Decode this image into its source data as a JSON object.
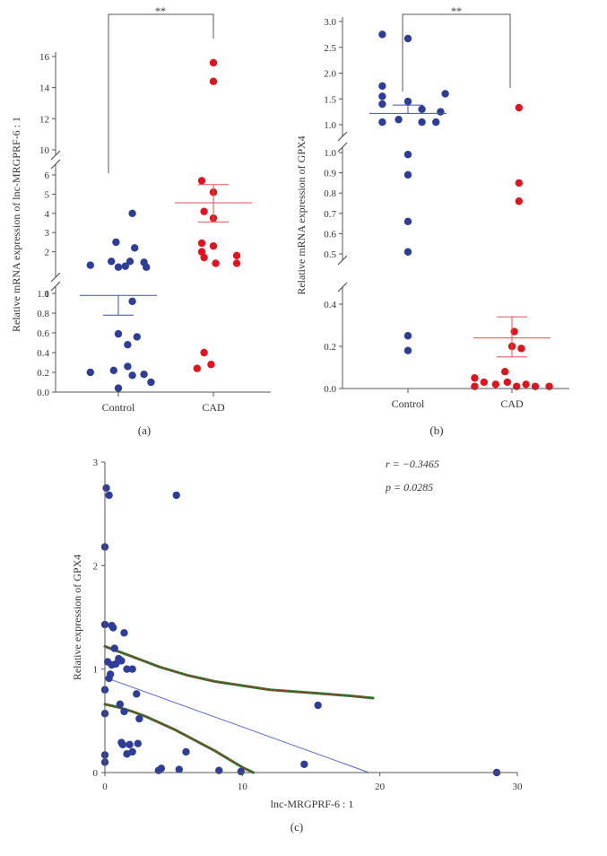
{
  "colors": {
    "control": "#2e3d97",
    "cad": "#e0141e",
    "mean_control": "#3c4fa8",
    "mean_cad": "#e25050",
    "confidence": "#2e7d32",
    "confidence_dots": "#b22222",
    "regression": "#5566cc",
    "axis": "#555555"
  },
  "chart_data": [
    {
      "id": "a",
      "type": "scatter",
      "caption": "(a)",
      "ylabel": "Relative mRNA expression of lnc-MRGPRF-6 : 1",
      "categories": [
        "Control",
        "CAD"
      ],
      "significance": "**",
      "y_ticks_lower": [
        "0.0",
        "0.2",
        "0.4",
        "0.6",
        "0.8",
        "1.0"
      ],
      "y_ticks_middle": [
        "1",
        "2",
        "3",
        "4",
        "5",
        "6"
      ],
      "y_ticks_upper": [
        "10",
        "12",
        "14",
        "16"
      ],
      "series": [
        {
          "name": "Control",
          "points": [
            {
              "dx": -0.12,
              "y": 0.2
            },
            {
              "dx": -0.02,
              "y": 0.22
            },
            {
              "dx": 0.04,
              "y": 0.26
            },
            {
              "dx": 0.06,
              "y": 0.17
            },
            {
              "dx": 0.11,
              "y": 0.18
            },
            {
              "dx": 0.14,
              "y": 0.1
            },
            {
              "dx": 0.0,
              "y": 0.04
            },
            {
              "dx": 0.04,
              "y": 0.48
            },
            {
              "dx": 0.08,
              "y": 0.56
            },
            {
              "dx": 0.0,
              "y": 0.59
            },
            {
              "dx": 0.06,
              "y": 0.92
            },
            {
              "dx": -0.12,
              "y": 1.3
            },
            {
              "dx": -0.03,
              "y": 1.5
            },
            {
              "dx": 0.0,
              "y": 1.2
            },
            {
              "dx": 0.05,
              "y": 1.5
            },
            {
              "dx": 0.12,
              "y": 1.2
            },
            {
              "dx": 0.11,
              "y": 1.45
            },
            {
              "dx": 0.03,
              "y": 1.25
            },
            {
              "dx": -0.01,
              "y": 2.5
            },
            {
              "dx": 0.07,
              "y": 2.2
            },
            {
              "dx": 0.06,
              "y": 4.0
            }
          ],
          "mean": 0.98,
          "error": 0.78
        },
        {
          "name": "CAD",
          "points": [
            {
              "dx": -0.07,
              "y": 0.24
            },
            {
              "dx": -0.01,
              "y": 0.28
            },
            {
              "dx": -0.04,
              "y": 0.4
            },
            {
              "dx": -0.04,
              "y": 1.7
            },
            {
              "dx": -0.05,
              "y": 2.0
            },
            {
              "dx": -0.05,
              "y": 2.45
            },
            {
              "dx": 0.0,
              "y": 2.3
            },
            {
              "dx": 0.01,
              "y": 1.4
            },
            {
              "dx": 0.1,
              "y": 1.4
            },
            {
              "dx": 0.1,
              "y": 1.8
            },
            {
              "dx": -0.04,
              "y": 4.1
            },
            {
              "dx": -0.05,
              "y": 5.7
            },
            {
              "dx": 0.0,
              "y": 5.1
            },
            {
              "dx": 0.0,
              "y": 3.75
            },
            {
              "dx": 0.0,
              "y": 14.4
            },
            {
              "dx": 0.0,
              "y": 15.6
            }
          ],
          "mean": 4.55,
          "error": 3.55,
          "error_upper": 5.5
        }
      ]
    },
    {
      "id": "b",
      "type": "scatter",
      "caption": "(b)",
      "ylabel": "Relative mRNA expression of GPX4",
      "categories": [
        "Control",
        "CAD"
      ],
      "significance": "**",
      "y_ticks_lower": [
        "0.0",
        "0.2",
        "0.4"
      ],
      "y_ticks_middle": [
        "0.5",
        "0.6",
        "0.7",
        "0.8",
        "0.9",
        "1.0"
      ],
      "y_ticks_upper": [
        "1.0",
        "1.5",
        "2.0",
        "2.5",
        "3.0"
      ],
      "series": [
        {
          "name": "Control",
          "points": [
            {
              "dx": 0.0,
              "y": 0.18
            },
            {
              "dx": 0.0,
              "y": 0.25
            },
            {
              "dx": 0.0,
              "y": 0.51
            },
            {
              "dx": 0.0,
              "y": 0.66
            },
            {
              "dx": 0.0,
              "y": 0.89
            },
            {
              "dx": 0.0,
              "y": 0.99
            },
            {
              "dx": -0.11,
              "y": 1.05
            },
            {
              "dx": -0.04,
              "y": 1.1
            },
            {
              "dx": 0.06,
              "y": 1.05
            },
            {
              "dx": 0.12,
              "y": 1.05
            },
            {
              "dx": -0.11,
              "y": 1.4
            },
            {
              "dx": 0.0,
              "y": 1.45
            },
            {
              "dx": 0.06,
              "y": 1.3
            },
            {
              "dx": 0.14,
              "y": 1.25
            },
            {
              "dx": 0.16,
              "y": 1.6
            },
            {
              "dx": -0.11,
              "y": 1.55
            },
            {
              "dx": -0.11,
              "y": 1.75
            },
            {
              "dx": -0.11,
              "y": 2.75
            },
            {
              "dx": 0.0,
              "y": 2.67
            }
          ],
          "mean": 1.22,
          "error": 1.38
        },
        {
          "name": "CAD",
          "points": [
            {
              "dx": -0.16,
              "y": 0.05
            },
            {
              "dx": -0.12,
              "y": 0.03
            },
            {
              "dx": -0.07,
              "y": 0.02
            },
            {
              "dx": -0.03,
              "y": 0.08
            },
            {
              "dx": -0.02,
              "y": 0.03
            },
            {
              "dx": 0.02,
              "y": 0.01
            },
            {
              "dx": 0.06,
              "y": 0.02
            },
            {
              "dx": 0.1,
              "y": 0.01
            },
            {
              "dx": 0.16,
              "y": 0.01
            },
            {
              "dx": -0.16,
              "y": 0.01
            },
            {
              "dx": 0.0,
              "y": 0.2
            },
            {
              "dx": 0.04,
              "y": 0.19
            },
            {
              "dx": 0.01,
              "y": 0.27
            },
            {
              "dx": 0.03,
              "y": 0.76
            },
            {
              "dx": 0.03,
              "y": 0.85
            },
            {
              "dx": 0.03,
              "y": 1.33
            }
          ],
          "mean": 0.24,
          "error": 0.15,
          "error_upper": 0.34
        }
      ]
    },
    {
      "id": "c",
      "type": "scatter",
      "caption": "(c)",
      "xlabel": "lnc-MRGPRF-6 : 1",
      "ylabel": "Relative expression of GPX4",
      "xlim": [
        0,
        30
      ],
      "ylim": [
        0,
        3
      ],
      "x_ticks": [
        "0",
        "10",
        "20",
        "30"
      ],
      "y_ticks": [
        "0",
        "1",
        "2",
        "3"
      ],
      "stat_r": "r = −0.3465",
      "stat_p": "p = 0.0285",
      "points": [
        [
          0.0,
          2.18
        ],
        [
          0.1,
          2.75
        ],
        [
          0.3,
          2.68
        ],
        [
          0.0,
          1.43
        ],
        [
          0.5,
          1.42
        ],
        [
          0.6,
          1.4
        ],
        [
          1.4,
          1.35
        ],
        [
          0.7,
          1.2
        ],
        [
          1.0,
          1.1
        ],
        [
          0.8,
          1.05
        ],
        [
          0.2,
          1.07
        ],
        [
          0.5,
          1.04
        ],
        [
          1.2,
          1.08
        ],
        [
          1.6,
          1.0
        ],
        [
          2.0,
          1.0
        ],
        [
          0.3,
          0.91
        ],
        [
          0.4,
          0.95
        ],
        [
          0.0,
          0.8
        ],
        [
          2.3,
          0.76
        ],
        [
          0.0,
          0.57
        ],
        [
          1.1,
          0.66
        ],
        [
          1.4,
          0.59
        ],
        [
          2.5,
          0.52
        ],
        [
          0.0,
          0.17
        ],
        [
          0.0,
          0.1
        ],
        [
          1.3,
          0.27
        ],
        [
          1.2,
          0.29
        ],
        [
          1.8,
          0.27
        ],
        [
          2.4,
          0.28
        ],
        [
          1.6,
          0.18
        ],
        [
          2.0,
          0.2
        ],
        [
          3.9,
          0.02
        ],
        [
          4.1,
          0.04
        ],
        [
          5.4,
          0.03
        ],
        [
          5.9,
          0.2
        ],
        [
          8.3,
          0.02
        ],
        [
          9.9,
          0.01
        ],
        [
          5.2,
          2.68
        ],
        [
          14.5,
          0.08
        ],
        [
          15.5,
          0.65
        ],
        [
          28.5,
          0.0
        ]
      ],
      "regression": [
        [
          0.0,
          0.92
        ],
        [
          19.2,
          0.0
        ]
      ],
      "confidence_upper": [
        [
          0,
          1.22
        ],
        [
          1,
          1.17
        ],
        [
          2,
          1.12
        ],
        [
          3,
          1.07
        ],
        [
          4,
          1.02
        ],
        [
          5,
          0.98
        ],
        [
          6,
          0.94
        ],
        [
          7,
          0.91
        ],
        [
          8,
          0.88
        ],
        [
          10,
          0.84
        ],
        [
          12,
          0.8
        ],
        [
          14,
          0.78
        ],
        [
          16,
          0.76
        ],
        [
          18,
          0.74
        ],
        [
          19.5,
          0.72
        ]
      ],
      "confidence_lower": [
        [
          0,
          0.66
        ],
        [
          1,
          0.63
        ],
        [
          2,
          0.59
        ],
        [
          3,
          0.54
        ],
        [
          4,
          0.48
        ],
        [
          5,
          0.42
        ],
        [
          6,
          0.35
        ],
        [
          7,
          0.28
        ],
        [
          8,
          0.21
        ],
        [
          9,
          0.13
        ],
        [
          10,
          0.05
        ],
        [
          10.8,
          0.0
        ]
      ]
    }
  ]
}
